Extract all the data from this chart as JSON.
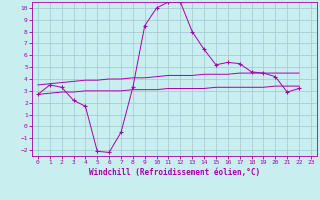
{
  "xlabel": "Windchill (Refroidissement éolien,°C)",
  "background_color": "#c8eef0",
  "grid_color": "#a0c8d0",
  "line_color": "#aa00aa",
  "xlim": [
    -0.5,
    23.5
  ],
  "ylim": [
    -2.5,
    10.5
  ],
  "xticks": [
    0,
    1,
    2,
    3,
    4,
    5,
    6,
    7,
    8,
    9,
    10,
    11,
    12,
    13,
    14,
    15,
    16,
    17,
    18,
    19,
    20,
    21,
    22,
    23
  ],
  "yticks": [
    -2,
    -1,
    0,
    1,
    2,
    3,
    4,
    5,
    6,
    7,
    8,
    9,
    10
  ],
  "x_main": [
    0,
    1,
    2,
    3,
    4,
    5,
    6,
    7,
    8,
    9,
    10,
    11,
    12,
    13,
    14,
    15,
    16,
    17,
    18,
    19,
    20,
    21,
    22
  ],
  "series_main": [
    2.7,
    3.5,
    3.3,
    2.2,
    1.7,
    -2.1,
    -2.2,
    -0.5,
    3.3,
    8.5,
    10.0,
    10.5,
    10.5,
    8.0,
    6.5,
    5.2,
    5.4,
    5.3,
    4.6,
    4.5,
    4.2,
    2.9,
    3.2
  ],
  "series_upper": [
    3.5,
    3.6,
    3.7,
    3.8,
    3.9,
    3.9,
    4.0,
    4.0,
    4.1,
    4.1,
    4.2,
    4.3,
    4.3,
    4.3,
    4.4,
    4.4,
    4.4,
    4.5,
    4.5,
    4.5,
    4.5,
    4.5,
    4.5
  ],
  "series_lower": [
    2.7,
    2.8,
    2.9,
    2.9,
    3.0,
    3.0,
    3.0,
    3.0,
    3.1,
    3.1,
    3.1,
    3.2,
    3.2,
    3.2,
    3.2,
    3.3,
    3.3,
    3.3,
    3.3,
    3.3,
    3.4,
    3.4,
    3.4
  ]
}
